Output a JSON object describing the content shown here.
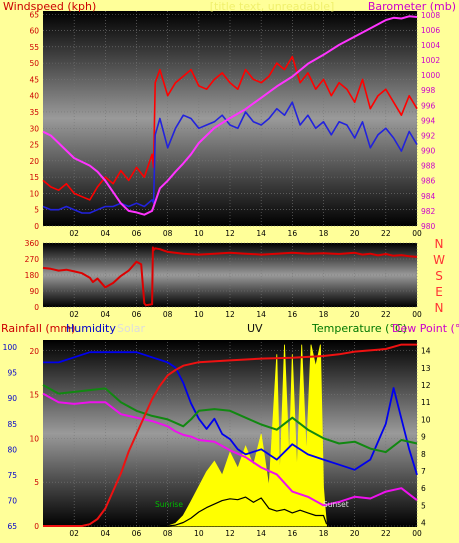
{
  "chart_data": [
    {
      "type": "line",
      "panel": "wind_barometer",
      "title_left": "Windspeed (kph)",
      "title_right": "Barometer (mb)",
      "overlay_text": "[title text, unreadable]",
      "x_ticks": [
        "02",
        "04",
        "06",
        "08",
        "10",
        "12",
        "14",
        "16",
        "18",
        "20",
        "22",
        "00"
      ],
      "y_left_ticks": [
        "0",
        "5",
        "10",
        "15",
        "20",
        "25",
        "30",
        "35",
        "40",
        "45",
        "50",
        "55",
        "60",
        "65"
      ],
      "y_left_range": [
        0,
        66
      ],
      "y_right_ticks": [
        "980",
        "982",
        "984",
        "986",
        "988",
        "990",
        "992",
        "994",
        "996",
        "998",
        "1000",
        "1002",
        "1004",
        "1006",
        "1008"
      ],
      "y_right_range": [
        980,
        1008.5
      ],
      "x_range": [
        0,
        24
      ],
      "colors": {
        "gust": "#ff0000",
        "wind": "#2222dd",
        "pressure": "#ff33ff",
        "left_axis_text": "#cc0000",
        "right_axis_text": "#cc00cc"
      },
      "series": [
        {
          "key": "gust",
          "x": [
            0,
            0.5,
            1,
            1.5,
            2,
            2.5,
            3,
            3.5,
            4,
            4.5,
            5,
            5.5,
            6,
            6.5,
            7,
            7.1,
            7.2,
            7.5,
            8,
            8.5,
            9,
            9.5,
            10,
            10.5,
            11,
            11.5,
            12,
            12.5,
            13,
            13.5,
            14,
            14.5,
            15,
            15.5,
            16,
            16.5,
            17,
            17.5,
            18,
            18.5,
            19,
            19.5,
            20,
            20.5,
            21,
            21.5,
            22,
            22.5,
            23,
            23.5,
            24
          ],
          "y": [
            14,
            12,
            11,
            13,
            10,
            9,
            8,
            12,
            15,
            13,
            17,
            14,
            18,
            15,
            22,
            18,
            44,
            48,
            40,
            44,
            46,
            48,
            43,
            42,
            45,
            47,
            44,
            42,
            48,
            45,
            44,
            46,
            50,
            48,
            52,
            44,
            47,
            42,
            45,
            40,
            44,
            42,
            38,
            45,
            36,
            40,
            42,
            38,
            34,
            40,
            36
          ]
        },
        {
          "key": "wind",
          "x": [
            0,
            0.5,
            1,
            1.5,
            2,
            2.5,
            3,
            3.5,
            4,
            4.5,
            5,
            5.5,
            6,
            6.5,
            7,
            7.1,
            7.2,
            7.5,
            8,
            8.5,
            9,
            9.5,
            10,
            10.5,
            11,
            11.5,
            12,
            12.5,
            13,
            13.5,
            14,
            14.5,
            15,
            15.5,
            16,
            16.5,
            17,
            17.5,
            18,
            18.5,
            19,
            19.5,
            20,
            20.5,
            21,
            21.5,
            22,
            22.5,
            23,
            23.5,
            24
          ],
          "y": [
            6,
            5,
            5,
            6,
            5,
            4,
            4,
            5,
            6,
            6,
            7,
            6,
            7,
            6,
            8,
            7,
            28,
            33,
            24,
            30,
            34,
            33,
            30,
            31,
            32,
            34,
            31,
            30,
            35,
            32,
            31,
            33,
            36,
            34,
            38,
            31,
            34,
            30,
            32,
            28,
            32,
            31,
            27,
            32,
            24,
            28,
            30,
            27,
            23,
            29,
            25
          ]
        },
        {
          "key": "pressure",
          "x": [
            0,
            0.5,
            1,
            1.5,
            2,
            2.5,
            3,
            3.5,
            4,
            4.5,
            5,
            5.5,
            6,
            6.5,
            7,
            7.5,
            8,
            8.5,
            9,
            9.5,
            10,
            11,
            12,
            13,
            14,
            15,
            16,
            17,
            18,
            19,
            20,
            21,
            22,
            22.5,
            23,
            23.5,
            24
          ],
          "y": [
            992.5,
            992,
            991,
            990,
            989,
            988.5,
            988,
            987.2,
            986,
            984.5,
            983,
            982,
            981.8,
            981.5,
            982,
            985,
            986,
            987.2,
            988.3,
            989.5,
            991,
            993,
            994.3,
            995.5,
            997,
            998.5,
            999.8,
            1001.5,
            1002.7,
            1004,
            1005.1,
            1006.2,
            1007.3,
            1007.6,
            1007.5,
            1007.8,
            1007.7
          ]
        }
      ]
    },
    {
      "type": "line",
      "panel": "wind_direction",
      "y_ticks": [
        "360",
        "270",
        "180",
        "90",
        "0"
      ],
      "y_range": [
        0,
        360
      ],
      "compass_labels": [
        "N",
        "W",
        "S",
        "E",
        "N"
      ],
      "x_ticks": [
        "02",
        "04",
        "06",
        "08",
        "10",
        "12",
        "14",
        "16",
        "18",
        "20",
        "22",
        "00"
      ],
      "x_range": [
        0,
        24
      ],
      "colors": {
        "direction": "#dd0000",
        "compass": "#ff3333"
      },
      "series": [
        {
          "key": "direction",
          "x": [
            0,
            0.5,
            1,
            1.5,
            2,
            2.5,
            3,
            3.2,
            3.5,
            4,
            4.5,
            5,
            5.5,
            6,
            6.3,
            6.5,
            6.6,
            7,
            7.05,
            7.1,
            7.2,
            7.5,
            8,
            9,
            10,
            11,
            12,
            13,
            14,
            15,
            16,
            17,
            18,
            19,
            20,
            20.5,
            21,
            21.5,
            22,
            22.5,
            23,
            23.5,
            24
          ],
          "y": [
            220,
            215,
            205,
            210,
            200,
            190,
            165,
            140,
            160,
            110,
            135,
            175,
            205,
            255,
            240,
            20,
            10,
            15,
            335,
            320,
            330,
            325,
            310,
            300,
            295,
            300,
            305,
            300,
            295,
            300,
            305,
            300,
            302,
            298,
            305,
            295,
            300,
            290,
            298,
            288,
            292,
            285,
            282
          ]
        }
      ]
    },
    {
      "type": "line",
      "panel": "rain_humidity_temperature",
      "label_rain": "Rainfall (mm)",
      "label_humidity": "Humidity",
      "label_solar": "Solar",
      "label_uv": "UV",
      "label_temperature": "Temperature (°C)",
      "label_dewpoint": "Dew Point (°C)",
      "label_sunrise": "Sunrise",
      "label_sunset": "Sunset",
      "y_rain_ticks": [
        "0",
        "5",
        "10",
        "15",
        "20"
      ],
      "y_rain_range": [
        0,
        21
      ],
      "y_humidity_ticks": [
        "65",
        "70",
        "75",
        "80",
        "85",
        "90",
        "95",
        "100"
      ],
      "y_humidity_range": [
        65,
        101
      ],
      "y_temp_ticks": [
        "4",
        "5",
        "6",
        "7",
        "8",
        "9",
        "10",
        "11",
        "12",
        "13",
        "14"
      ],
      "y_temp_range": [
        3.8,
        14.5
      ],
      "x_ticks": [
        "02",
        "04",
        "06",
        "08",
        "10",
        "12",
        "14",
        "16",
        "18",
        "20",
        "22",
        "00"
      ],
      "x_range": [
        0,
        24
      ],
      "colors": {
        "rain": "#ee1111",
        "humidity": "#0000ee",
        "temperature": "#118811",
        "dewpoint": "#ee11ee",
        "solar": "#ffff00",
        "uv": "#000000",
        "rain_text": "#cc0000",
        "humidity_text": "#0000cc",
        "solar_text": "#dddddd",
        "uv_text": "#111111",
        "temperature_text": "#007700",
        "dewpoint_text": "#cc00cc",
        "sunrise_text": "#00bb00",
        "sunset_text": "#dddddd"
      },
      "series": [
        {
          "key": "rain",
          "x": [
            0,
            1,
            2,
            2.5,
            3,
            3.5,
            4,
            4.5,
            5,
            5.5,
            6,
            6.5,
            7,
            7.5,
            8,
            8.5,
            9,
            10,
            12,
            14,
            16,
            18,
            19,
            20,
            22,
            23,
            24
          ],
          "y": [
            0,
            0,
            0,
            0,
            0.2,
            0.8,
            2,
            4,
            6,
            8.5,
            10.5,
            12.5,
            14.5,
            16,
            17.2,
            17.8,
            18.3,
            18.7,
            18.9,
            19.1,
            19.2,
            19.4,
            19.6,
            19.9,
            20.2,
            20.7,
            20.7
          ]
        },
        {
          "key": "humidity",
          "x": [
            0,
            1,
            2,
            3,
            4,
            5,
            6,
            7,
            8,
            8.5,
            9,
            9.5,
            10,
            10.5,
            11,
            11.5,
            12,
            12.5,
            13,
            14,
            15,
            16,
            17,
            18,
            19,
            20,
            21,
            22,
            22.5,
            23,
            23.5,
            24
          ],
          "y": [
            97,
            97,
            98,
            99,
            99,
            99,
            99,
            98,
            97,
            96,
            93,
            89,
            86,
            84,
            86,
            83,
            82,
            80,
            79,
            80,
            78,
            81,
            79,
            78,
            77,
            76,
            78,
            85,
            92,
            86,
            80,
            75
          ]
        },
        {
          "key": "temperature",
          "x": [
            0,
            1,
            2,
            3,
            4,
            5,
            6,
            7,
            8,
            8.5,
            9,
            9.5,
            10,
            11,
            12,
            13,
            14,
            15,
            16,
            17,
            18,
            19,
            20,
            21,
            22,
            23,
            24
          ],
          "y": [
            12,
            11.5,
            11.6,
            11.7,
            11.8,
            11,
            10.5,
            10.2,
            10,
            9.8,
            9.6,
            10,
            10.5,
            10.6,
            10.5,
            10.1,
            9.7,
            9.4,
            10.1,
            9.4,
            8.9,
            8.6,
            8.7,
            8.3,
            8.1,
            8.8,
            8.6
          ]
        },
        {
          "key": "dewpoint",
          "x": [
            0,
            1,
            2,
            3,
            4,
            5,
            6,
            7,
            8,
            8.5,
            9,
            9.5,
            10,
            11,
            12,
            13,
            14,
            15,
            16,
            17,
            18,
            19,
            20,
            21,
            22,
            23,
            24
          ],
          "y": [
            11.5,
            11,
            10.9,
            11,
            11,
            10.3,
            10.1,
            9.9,
            9.6,
            9.3,
            9.1,
            9.0,
            8.8,
            8.7,
            8.2,
            7.8,
            7.2,
            6.8,
            5.8,
            5.5,
            5.0,
            5.2,
            5.5,
            5.4,
            5.8,
            6.0,
            5.3
          ]
        },
        {
          "key": "uv",
          "x": [
            7.5,
            8,
            8.5,
            9,
            9.5,
            10,
            10.5,
            11,
            11.5,
            12,
            12.5,
            13,
            13.5,
            14,
            14.5,
            15,
            15.5,
            16,
            16.5,
            17,
            17.5,
            18,
            18.2
          ],
          "y": [
            0,
            0,
            0.1,
            0.4,
            0.9,
            1.6,
            2.1,
            2.5,
            2.9,
            3.1,
            3.0,
            3.3,
            2.7,
            3.2,
            2.0,
            1.7,
            1.9,
            1.5,
            1.8,
            1.5,
            1.2,
            1.2,
            0.2
          ]
        },
        {
          "key": "solar",
          "x": [
            7.5,
            8,
            8.5,
            9,
            9.5,
            10,
            10.5,
            11,
            11.5,
            12,
            12.5,
            13,
            13.5,
            14,
            14.5,
            15,
            15.2,
            15.5,
            15.8,
            16,
            16.3,
            16.6,
            16.9,
            17.2,
            17.5,
            17.8,
            18,
            18.2
          ],
          "y": [
            0,
            0,
            0.3,
            1.2,
            2.8,
            4.5,
            6.2,
            7.4,
            5.8,
            8.4,
            6.6,
            9.1,
            6.9,
            10.5,
            4.4,
            19.6,
            5.4,
            20.7,
            7.4,
            19.6,
            6.1,
            20.7,
            8.0,
            20.7,
            18.2,
            20.7,
            4.4,
            0
          ]
        }
      ]
    }
  ]
}
